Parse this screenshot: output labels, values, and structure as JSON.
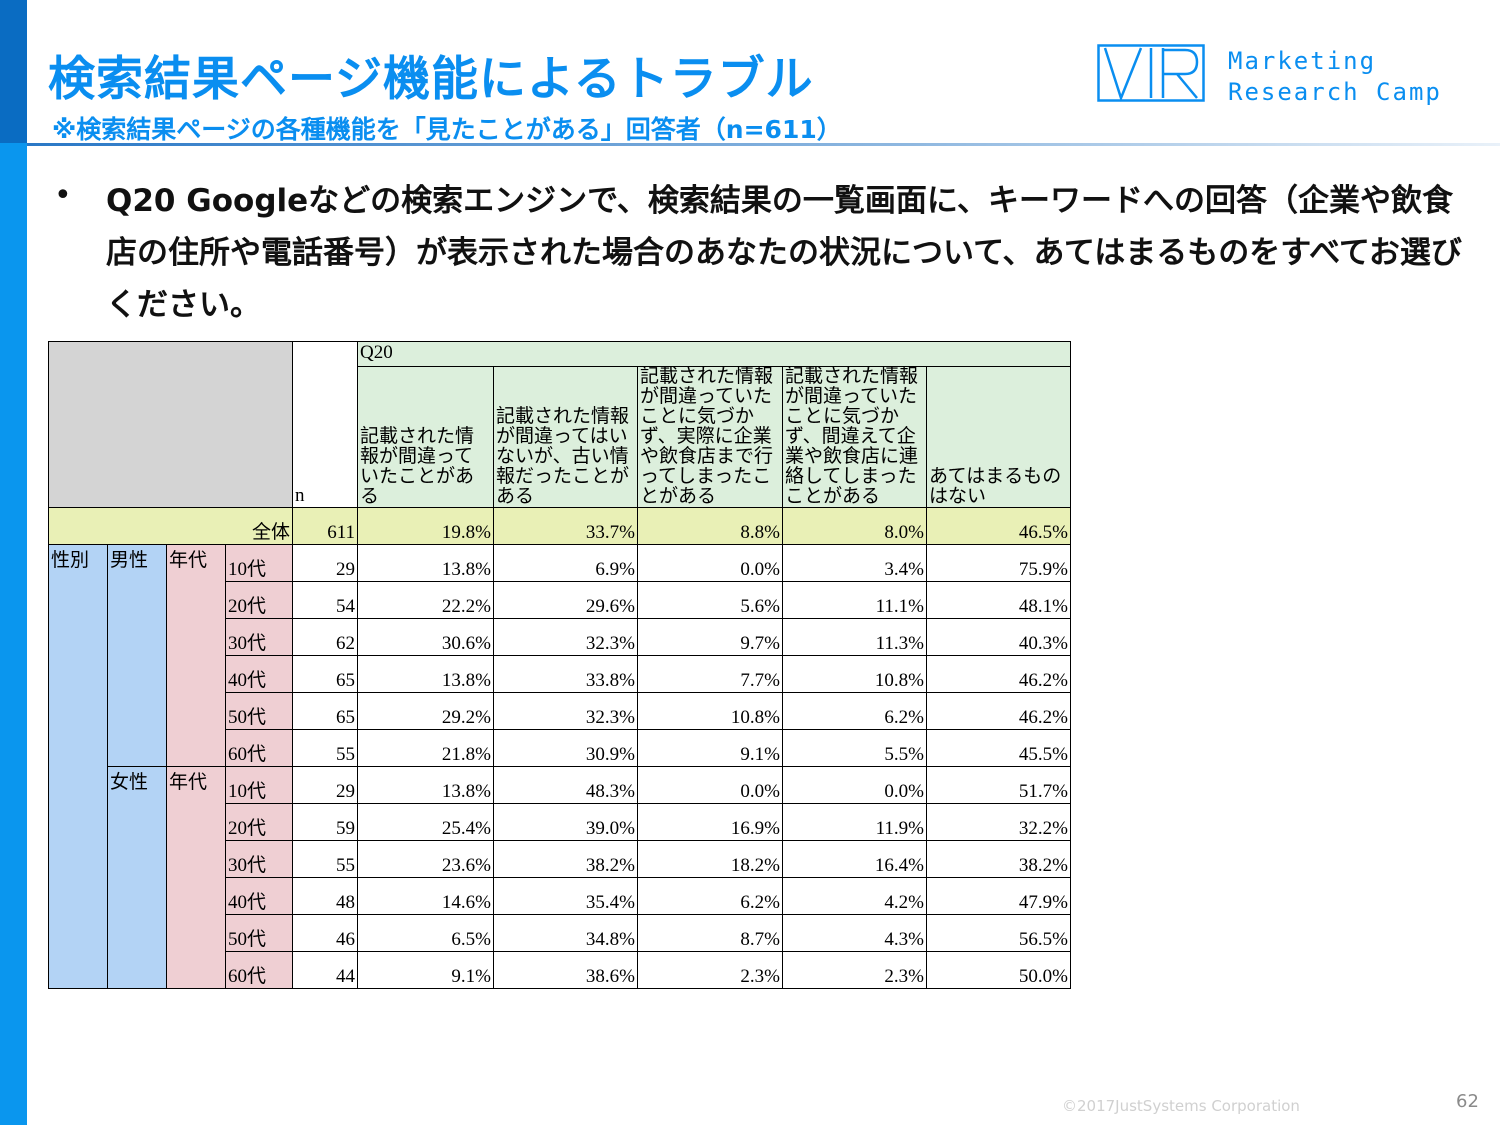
{
  "header": {
    "title": "検索結果ページ機能によるトラブル",
    "subtitle": "※検索結果ページの各種機能を「見たことがある」回答者（n=611）",
    "logo_line1": "Marketing",
    "logo_line2": "Research Camp"
  },
  "question": {
    "bullet": "•",
    "text": "Q20 Googleなどの検索エンジンで、検索結果の一覧画面に、キーワードへの回答（企業や飲食店の住所や電話番号）が表示された場合のあなたの状況について、あてはまるものをすべてお選びください。"
  },
  "table": {
    "n_label": "n",
    "q_label": "Q20",
    "columns": [
      "記載された情報が間違っていたことがある",
      "記載された情報が間違ってはいないが、古い情報だったことがある",
      "記載された情報が間違っていたことに気づかず、実際に企業や飲食店まで行ってしまったことがある",
      "記載された情報が間違っていたことに気づかず、間違えて企業や飲食店に連絡してしまったことがある",
      "あてはまるものはない"
    ],
    "total": {
      "label": "全体",
      "n": "611",
      "values": [
        "19.8%",
        "33.7%",
        "8.8%",
        "8.0%",
        "46.5%"
      ]
    },
    "gender_group_label": "性別",
    "age_group_label": "年代",
    "male": {
      "label": "男性",
      "rows": [
        {
          "age": "10代",
          "n": "29",
          "values": [
            "13.8%",
            "6.9%",
            "0.0%",
            "3.4%",
            "75.9%"
          ]
        },
        {
          "age": "20代",
          "n": "54",
          "values": [
            "22.2%",
            "29.6%",
            "5.6%",
            "11.1%",
            "48.1%"
          ]
        },
        {
          "age": "30代",
          "n": "62",
          "values": [
            "30.6%",
            "32.3%",
            "9.7%",
            "11.3%",
            "40.3%"
          ]
        },
        {
          "age": "40代",
          "n": "65",
          "values": [
            "13.8%",
            "33.8%",
            "7.7%",
            "10.8%",
            "46.2%"
          ]
        },
        {
          "age": "50代",
          "n": "65",
          "values": [
            "29.2%",
            "32.3%",
            "10.8%",
            "6.2%",
            "46.2%"
          ]
        },
        {
          "age": "60代",
          "n": "55",
          "values": [
            "21.8%",
            "30.9%",
            "9.1%",
            "5.5%",
            "45.5%"
          ]
        }
      ]
    },
    "female": {
      "label": "女性",
      "rows": [
        {
          "age": "10代",
          "n": "29",
          "values": [
            "13.8%",
            "48.3%",
            "0.0%",
            "0.0%",
            "51.7%"
          ]
        },
        {
          "age": "20代",
          "n": "59",
          "values": [
            "25.4%",
            "39.0%",
            "16.9%",
            "11.9%",
            "32.2%"
          ]
        },
        {
          "age": "30代",
          "n": "55",
          "values": [
            "23.6%",
            "38.2%",
            "18.2%",
            "16.4%",
            "38.2%"
          ]
        },
        {
          "age": "40代",
          "n": "48",
          "values": [
            "14.6%",
            "35.4%",
            "6.2%",
            "4.2%",
            "47.9%"
          ]
        },
        {
          "age": "50代",
          "n": "46",
          "values": [
            "6.5%",
            "34.8%",
            "8.7%",
            "4.3%",
            "56.5%"
          ]
        },
        {
          "age": "60代",
          "n": "44",
          "values": [
            "9.1%",
            "38.6%",
            "2.3%",
            "2.3%",
            "50.0%"
          ]
        }
      ]
    }
  },
  "footer": {
    "copyright": "©2017JustSystems Corporation",
    "page_number": "62"
  }
}
